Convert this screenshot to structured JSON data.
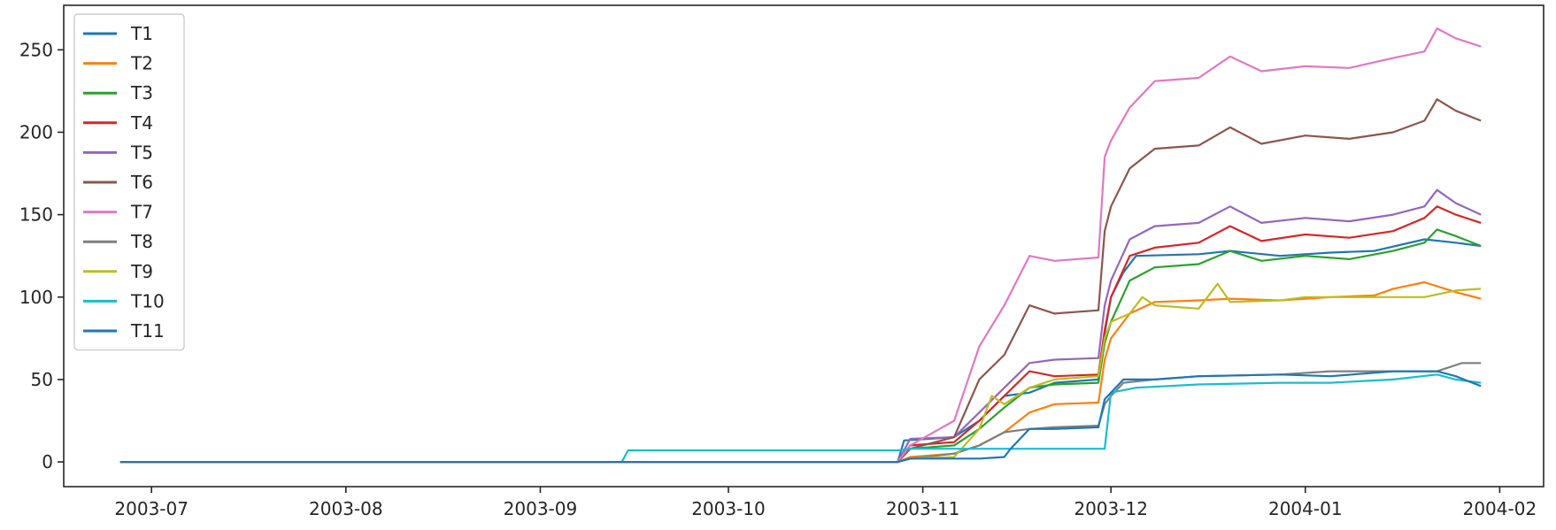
{
  "chart_data": {
    "type": "line",
    "title": "",
    "xlabel": "",
    "ylabel": "",
    "x_axis": {
      "kind": "date",
      "range": [
        "2003-06-17",
        "2004-02-08"
      ],
      "ticks": [
        "2003-07-01",
        "2003-08-01",
        "2003-09-01",
        "2003-10-01",
        "2003-11-01",
        "2003-12-01",
        "2004-01-01",
        "2004-02-01"
      ],
      "tick_labels": [
        "2003-07",
        "2003-08",
        "2003-09",
        "2003-10",
        "2003-11",
        "2003-12",
        "2004-01",
        "2004-02"
      ]
    },
    "y_axis": {
      "range": [
        -15,
        277
      ],
      "ticks": [
        0,
        50,
        100,
        150,
        200,
        250
      ],
      "tick_labels": [
        "0",
        "50",
        "100",
        "150",
        "200",
        "250"
      ]
    },
    "grid": false,
    "legend": {
      "placement": "top-left"
    },
    "series": [
      {
        "name": "T1",
        "color": "#1f77b4",
        "points": [
          [
            "2003-06-26",
            0
          ],
          [
            "2003-10-28",
            0
          ],
          [
            "2003-10-29",
            13
          ],
          [
            "2003-11-06",
            15
          ],
          [
            "2003-11-10",
            25
          ],
          [
            "2003-11-14",
            40
          ],
          [
            "2003-11-18",
            42
          ],
          [
            "2003-11-22",
            48
          ],
          [
            "2003-11-29",
            50
          ],
          [
            "2003-11-30",
            78
          ],
          [
            "2003-12-01",
            100
          ],
          [
            "2003-12-03",
            115
          ],
          [
            "2003-12-05",
            125
          ],
          [
            "2003-12-15",
            126
          ],
          [
            "2003-12-20",
            128
          ],
          [
            "2003-12-28",
            125
          ],
          [
            "2004-01-05",
            127
          ],
          [
            "2004-01-12",
            128
          ],
          [
            "2004-01-20",
            135
          ],
          [
            "2004-01-25",
            133
          ],
          [
            "2004-01-29",
            131
          ]
        ]
      },
      {
        "name": "T2",
        "color": "#ff7f0e",
        "points": [
          [
            "2003-06-26",
            0
          ],
          [
            "2003-10-28",
            0
          ],
          [
            "2003-10-30",
            3
          ],
          [
            "2003-11-06",
            5
          ],
          [
            "2003-11-10",
            10
          ],
          [
            "2003-11-14",
            18
          ],
          [
            "2003-11-18",
            30
          ],
          [
            "2003-11-22",
            35
          ],
          [
            "2003-11-29",
            36
          ],
          [
            "2003-11-30",
            62
          ],
          [
            "2003-12-01",
            75
          ],
          [
            "2003-12-04",
            90
          ],
          [
            "2003-12-08",
            97
          ],
          [
            "2003-12-15",
            98
          ],
          [
            "2003-12-20",
            99
          ],
          [
            "2003-12-28",
            98
          ],
          [
            "2004-01-05",
            100
          ],
          [
            "2004-01-12",
            101
          ],
          [
            "2004-01-15",
            105
          ],
          [
            "2004-01-20",
            109
          ],
          [
            "2004-01-25",
            103
          ],
          [
            "2004-01-29",
            99
          ]
        ]
      },
      {
        "name": "T3",
        "color": "#2ca02c",
        "points": [
          [
            "2003-06-26",
            0
          ],
          [
            "2003-10-28",
            0
          ],
          [
            "2003-10-30",
            8
          ],
          [
            "2003-11-06",
            10
          ],
          [
            "2003-11-10",
            20
          ],
          [
            "2003-11-14",
            33
          ],
          [
            "2003-11-18",
            45
          ],
          [
            "2003-11-22",
            47
          ],
          [
            "2003-11-29",
            48
          ],
          [
            "2003-11-30",
            72
          ],
          [
            "2003-12-01",
            85
          ],
          [
            "2003-12-04",
            110
          ],
          [
            "2003-12-08",
            118
          ],
          [
            "2003-12-15",
            120
          ],
          [
            "2003-12-20",
            128
          ],
          [
            "2003-12-25",
            122
          ],
          [
            "2004-01-01",
            125
          ],
          [
            "2004-01-08",
            123
          ],
          [
            "2004-01-15",
            128
          ],
          [
            "2004-01-20",
            133
          ],
          [
            "2004-01-22",
            141
          ],
          [
            "2004-01-25",
            137
          ],
          [
            "2004-01-29",
            131
          ]
        ]
      },
      {
        "name": "T4",
        "color": "#d62728",
        "points": [
          [
            "2003-06-26",
            0
          ],
          [
            "2003-10-28",
            0
          ],
          [
            "2003-10-30",
            10
          ],
          [
            "2003-11-06",
            12
          ],
          [
            "2003-11-10",
            25
          ],
          [
            "2003-11-14",
            40
          ],
          [
            "2003-11-18",
            55
          ],
          [
            "2003-11-22",
            52
          ],
          [
            "2003-11-29",
            53
          ],
          [
            "2003-11-30",
            80
          ],
          [
            "2003-12-01",
            100
          ],
          [
            "2003-12-04",
            125
          ],
          [
            "2003-12-08",
            130
          ],
          [
            "2003-12-15",
            133
          ],
          [
            "2003-12-20",
            143
          ],
          [
            "2003-12-25",
            134
          ],
          [
            "2004-01-01",
            138
          ],
          [
            "2004-01-08",
            136
          ],
          [
            "2004-01-15",
            140
          ],
          [
            "2004-01-20",
            148
          ],
          [
            "2004-01-22",
            155
          ],
          [
            "2004-01-25",
            150
          ],
          [
            "2004-01-29",
            145
          ]
        ]
      },
      {
        "name": "T5",
        "color": "#9467bd",
        "points": [
          [
            "2003-06-26",
            0
          ],
          [
            "2003-10-28",
            0
          ],
          [
            "2003-10-30",
            14
          ],
          [
            "2003-11-06",
            15
          ],
          [
            "2003-11-10",
            30
          ],
          [
            "2003-11-14",
            45
          ],
          [
            "2003-11-18",
            60
          ],
          [
            "2003-11-22",
            62
          ],
          [
            "2003-11-29",
            63
          ],
          [
            "2003-11-30",
            95
          ],
          [
            "2003-12-01",
            110
          ],
          [
            "2003-12-04",
            135
          ],
          [
            "2003-12-08",
            143
          ],
          [
            "2003-12-15",
            145
          ],
          [
            "2003-12-20",
            155
          ],
          [
            "2003-12-25",
            145
          ],
          [
            "2004-01-01",
            148
          ],
          [
            "2004-01-08",
            146
          ],
          [
            "2004-01-15",
            150
          ],
          [
            "2004-01-20",
            155
          ],
          [
            "2004-01-22",
            165
          ],
          [
            "2004-01-25",
            157
          ],
          [
            "2004-01-29",
            150
          ]
        ]
      },
      {
        "name": "T6",
        "color": "#8c564b",
        "points": [
          [
            "2003-06-26",
            0
          ],
          [
            "2003-10-28",
            0
          ],
          [
            "2003-10-30",
            8
          ],
          [
            "2003-11-06",
            15
          ],
          [
            "2003-11-10",
            50
          ],
          [
            "2003-11-14",
            65
          ],
          [
            "2003-11-18",
            95
          ],
          [
            "2003-11-22",
            90
          ],
          [
            "2003-11-29",
            92
          ],
          [
            "2003-11-30",
            140
          ],
          [
            "2003-12-01",
            155
          ],
          [
            "2003-12-04",
            178
          ],
          [
            "2003-12-08",
            190
          ],
          [
            "2003-12-15",
            192
          ],
          [
            "2003-12-20",
            203
          ],
          [
            "2003-12-25",
            193
          ],
          [
            "2004-01-01",
            198
          ],
          [
            "2004-01-08",
            196
          ],
          [
            "2004-01-15",
            200
          ],
          [
            "2004-01-20",
            207
          ],
          [
            "2004-01-22",
            220
          ],
          [
            "2004-01-25",
            213
          ],
          [
            "2004-01-29",
            207
          ]
        ]
      },
      {
        "name": "T7",
        "color": "#e377c2",
        "points": [
          [
            "2003-06-26",
            0
          ],
          [
            "2003-10-28",
            0
          ],
          [
            "2003-10-30",
            10
          ],
          [
            "2003-11-06",
            25
          ],
          [
            "2003-11-10",
            70
          ],
          [
            "2003-11-14",
            95
          ],
          [
            "2003-11-18",
            125
          ],
          [
            "2003-11-22",
            122
          ],
          [
            "2003-11-29",
            124
          ],
          [
            "2003-11-30",
            185
          ],
          [
            "2003-12-01",
            195
          ],
          [
            "2003-12-04",
            215
          ],
          [
            "2003-12-08",
            231
          ],
          [
            "2003-12-15",
            233
          ],
          [
            "2003-12-20",
            246
          ],
          [
            "2003-12-25",
            237
          ],
          [
            "2004-01-01",
            240
          ],
          [
            "2004-01-08",
            239
          ],
          [
            "2004-01-15",
            245
          ],
          [
            "2004-01-20",
            249
          ],
          [
            "2004-01-22",
            263
          ],
          [
            "2004-01-25",
            257
          ],
          [
            "2004-01-29",
            252
          ]
        ]
      },
      {
        "name": "T8",
        "color": "#7f7f7f",
        "points": [
          [
            "2003-06-26",
            0
          ],
          [
            "2003-10-28",
            0
          ],
          [
            "2003-10-30",
            2
          ],
          [
            "2003-11-06",
            5
          ],
          [
            "2003-11-10",
            10
          ],
          [
            "2003-11-14",
            18
          ],
          [
            "2003-11-18",
            20
          ],
          [
            "2003-11-22",
            21
          ],
          [
            "2003-11-29",
            22
          ],
          [
            "2003-11-30",
            35
          ],
          [
            "2003-12-01",
            40
          ],
          [
            "2003-12-03",
            48
          ],
          [
            "2003-12-08",
            50
          ],
          [
            "2003-12-15",
            52
          ],
          [
            "2003-12-28",
            53
          ],
          [
            "2004-01-05",
            55
          ],
          [
            "2004-01-15",
            55
          ],
          [
            "2004-01-22",
            55
          ],
          [
            "2004-01-26",
            60
          ],
          [
            "2004-01-29",
            60
          ]
        ]
      },
      {
        "name": "T9",
        "color": "#bcbd22",
        "points": [
          [
            "2003-06-26",
            0
          ],
          [
            "2003-10-28",
            0
          ],
          [
            "2003-10-30",
            2
          ],
          [
            "2003-11-06",
            3
          ],
          [
            "2003-11-10",
            20
          ],
          [
            "2003-11-12",
            40
          ],
          [
            "2003-11-14",
            35
          ],
          [
            "2003-11-18",
            45
          ],
          [
            "2003-11-22",
            50
          ],
          [
            "2003-11-29",
            52
          ],
          [
            "2003-11-30",
            75
          ],
          [
            "2003-12-01",
            85
          ],
          [
            "2003-12-04",
            90
          ],
          [
            "2003-12-06",
            100
          ],
          [
            "2003-12-08",
            95
          ],
          [
            "2003-12-15",
            93
          ],
          [
            "2003-12-18",
            108
          ],
          [
            "2003-12-20",
            97
          ],
          [
            "2003-12-28",
            98
          ],
          [
            "2004-01-01",
            100
          ],
          [
            "2004-01-10",
            100
          ],
          [
            "2004-01-20",
            100
          ],
          [
            "2004-01-25",
            104
          ],
          [
            "2004-01-29",
            105
          ]
        ]
      },
      {
        "name": "T10",
        "color": "#17becf",
        "points": [
          [
            "2003-06-26",
            0
          ],
          [
            "2003-09-14",
            0
          ],
          [
            "2003-09-15",
            7
          ],
          [
            "2003-10-28",
            7
          ],
          [
            "2003-10-30",
            8
          ],
          [
            "2003-11-29",
            8
          ],
          [
            "2003-11-30",
            8
          ],
          [
            "2003-12-01",
            42
          ],
          [
            "2003-12-05",
            45
          ],
          [
            "2003-12-15",
            47
          ],
          [
            "2003-12-28",
            48
          ],
          [
            "2004-01-05",
            48
          ],
          [
            "2004-01-15",
            50
          ],
          [
            "2004-01-22",
            53
          ],
          [
            "2004-01-25",
            50
          ],
          [
            "2004-01-29",
            48
          ]
        ]
      },
      {
        "name": "T11",
        "color": "#1f77b4",
        "points": [
          [
            "2003-06-26",
            0
          ],
          [
            "2003-10-28",
            0
          ],
          [
            "2003-10-30",
            2
          ],
          [
            "2003-11-10",
            2
          ],
          [
            "2003-11-14",
            3
          ],
          [
            "2003-11-15",
            8
          ],
          [
            "2003-11-18",
            20
          ],
          [
            "2003-11-22",
            20
          ],
          [
            "2003-11-29",
            21
          ],
          [
            "2003-11-30",
            38
          ],
          [
            "2003-12-01",
            42
          ],
          [
            "2003-12-03",
            50
          ],
          [
            "2003-12-08",
            50
          ],
          [
            "2003-12-15",
            52
          ],
          [
            "2003-12-28",
            53
          ],
          [
            "2004-01-05",
            52
          ],
          [
            "2004-01-15",
            55
          ],
          [
            "2004-01-22",
            55
          ],
          [
            "2004-01-25",
            52
          ],
          [
            "2004-01-29",
            46
          ]
        ]
      }
    ]
  }
}
